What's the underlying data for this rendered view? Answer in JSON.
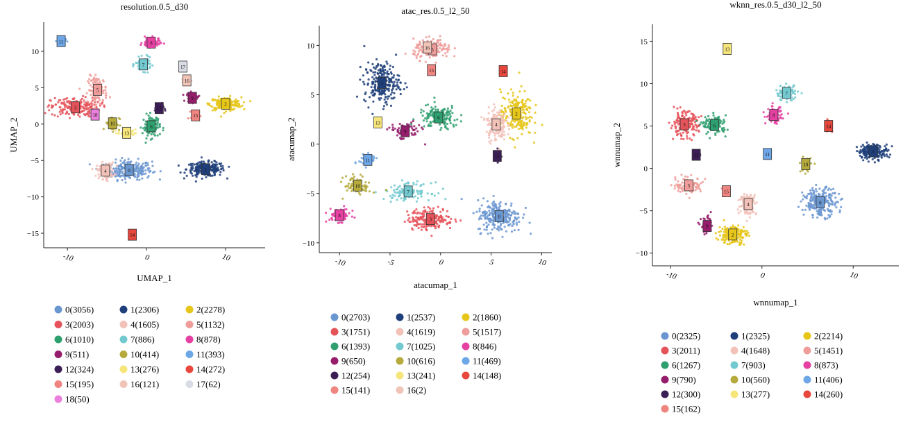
{
  "palette": {
    "0": "#6b97d1",
    "1": "#1f3f7a",
    "2": "#e6c619",
    "3": "#e5535a",
    "4": "#f2c1b8",
    "5": "#ef9d9a",
    "6": "#2e9f6e",
    "7": "#72c9d0",
    "8": "#e640a3",
    "9": "#951d6c",
    "10": "#b5aa3b",
    "11": "#6ea7e8",
    "12": "#3c1e56",
    "13": "#f5e57a",
    "14": "#e8473d",
    "15": "#ef8581",
    "16": "#f1c4b8",
    "17": "#d9dbe5",
    "18": "#ea80dc"
  },
  "chart_data": [
    {
      "type": "scatter",
      "title": "resolution.0.5_d30",
      "xlabel": "UMAP_1",
      "ylabel": "UMAP_2",
      "xlim": [
        -13,
        15
      ],
      "ylim": [
        -17,
        14
      ],
      "x_ticks": [
        -10,
        0,
        10
      ],
      "x_tick_labels": [
        "-10",
        "0",
        "10"
      ],
      "y_ticks": [
        10,
        5,
        0,
        -5,
        -10,
        -15
      ],
      "y_tick_labels": [
        "10",
        "5",
        "0",
        "−5",
        "−10",
        "−15"
      ],
      "clusters": [
        {
          "id": "0",
          "x": -2.2,
          "y": -6.3,
          "sx": 2.6,
          "sy": 1.2,
          "n": 260,
          "label": "0(3056)"
        },
        {
          "id": "1",
          "x": 7.5,
          "y": -6.2,
          "sx": 2.2,
          "sy": 0.9,
          "n": 220,
          "label": "1(2306)"
        },
        {
          "id": "2",
          "x": 10.0,
          "y": 2.8,
          "sx": 1.8,
          "sy": 0.8,
          "n": 190,
          "label": "2(2278)"
        },
        {
          "id": "3",
          "x": -9.0,
          "y": 2.3,
          "sx": 2.8,
          "sy": 1.2,
          "n": 210,
          "label": "3(2003)"
        },
        {
          "id": "4",
          "x": -5.2,
          "y": -6.4,
          "sx": 1.0,
          "sy": 1.0,
          "n": 120,
          "label": "4(1605)"
        },
        {
          "id": "5",
          "x": -6.2,
          "y": 4.7,
          "sx": 1.1,
          "sy": 1.7,
          "n": 110,
          "label": "5(1132)"
        },
        {
          "id": "6",
          "x": 0.6,
          "y": -0.3,
          "sx": 1.0,
          "sy": 1.4,
          "n": 100,
          "label": "6(1010)"
        },
        {
          "id": "7",
          "x": -0.4,
          "y": 8.2,
          "sx": 0.9,
          "sy": 0.8,
          "n": 85,
          "label": "7(886)"
        },
        {
          "id": "8",
          "x": 0.6,
          "y": 11.2,
          "sx": 1.0,
          "sy": 0.6,
          "n": 85,
          "label": "8(878)"
        },
        {
          "id": "9",
          "x": 5.8,
          "y": 3.6,
          "sx": 0.7,
          "sy": 0.6,
          "n": 55,
          "label": "9(511)"
        },
        {
          "id": "10",
          "x": -4.3,
          "y": 0.1,
          "sx": 0.8,
          "sy": 0.9,
          "n": 45,
          "label": "10(414)"
        },
        {
          "id": "11",
          "x": -10.8,
          "y": 11.4,
          "sx": 0.5,
          "sy": 0.4,
          "n": 40,
          "label": "11(393)"
        },
        {
          "id": "12",
          "x": 1.6,
          "y": 2.2,
          "sx": 0.5,
          "sy": 0.6,
          "n": 35,
          "label": "12(324)"
        },
        {
          "id": "13",
          "x": -2.5,
          "y": -1.2,
          "sx": 1.0,
          "sy": 0.4,
          "n": 35,
          "label": "13(276)"
        },
        {
          "id": "14",
          "x": -1.8,
          "y": -15.2,
          "sx": 0.3,
          "sy": 0.3,
          "n": 30,
          "label": "14(272)"
        },
        {
          "id": "15",
          "x": 6.2,
          "y": 1.2,
          "sx": 0.5,
          "sy": 0.5,
          "n": 25,
          "label": "15(195)"
        },
        {
          "id": "16",
          "x": 5.1,
          "y": 6.0,
          "sx": 0.6,
          "sy": 0.4,
          "n": 20,
          "label": "16(121)"
        },
        {
          "id": "17",
          "x": 4.6,
          "y": 7.9,
          "sx": 0.4,
          "sy": 0.3,
          "n": 12,
          "label": "17(62)"
        },
        {
          "id": "18",
          "x": -6.5,
          "y": 1.3,
          "sx": 0.4,
          "sy": 0.3,
          "n": 12,
          "label": "18(50)"
        }
      ]
    },
    {
      "type": "scatter",
      "title": "atac_res.0.5_l2_50",
      "xlabel": "atacumap_1",
      "ylabel": "atacumap_2",
      "xlim": [
        -12,
        11
      ],
      "ylim": [
        -11,
        12
      ],
      "x_ticks": [
        -10,
        -5,
        0,
        5,
        10
      ],
      "x_tick_labels": [
        "-10",
        "-5",
        "0",
        "5",
        "10"
      ],
      "y_ticks": [
        10,
        5,
        0,
        -5,
        -10
      ],
      "y_tick_labels": [
        "10",
        "5",
        "0",
        "−5",
        "−10"
      ],
      "clusters": [
        {
          "id": "0",
          "x": 5.8,
          "y": -7.3,
          "sx": 2.0,
          "sy": 1.5,
          "n": 240,
          "label": "0(2703)"
        },
        {
          "id": "1",
          "x": -5.8,
          "y": 6.2,
          "sx": 1.6,
          "sy": 1.9,
          "n": 230,
          "label": "1(2537)"
        },
        {
          "id": "2",
          "x": 7.5,
          "y": 3.1,
          "sx": 1.4,
          "sy": 2.1,
          "n": 200,
          "label": "2(1860)"
        },
        {
          "id": "3",
          "x": -1.0,
          "y": -7.6,
          "sx": 2.1,
          "sy": 1.0,
          "n": 180,
          "label": "3(1751)"
        },
        {
          "id": "4",
          "x": 5.5,
          "y": 2.0,
          "sx": 0.9,
          "sy": 1.5,
          "n": 160,
          "label": "4(1619)"
        },
        {
          "id": "5",
          "x": -0.8,
          "y": 9.6,
          "sx": 1.7,
          "sy": 0.9,
          "n": 150,
          "label": "5(1517)"
        },
        {
          "id": "6",
          "x": -0.2,
          "y": 2.7,
          "sx": 1.8,
          "sy": 1.1,
          "n": 140,
          "label": "6(1393)"
        },
        {
          "id": "7",
          "x": -3.2,
          "y": -4.8,
          "sx": 2.1,
          "sy": 0.8,
          "n": 110,
          "label": "7(1025)"
        },
        {
          "id": "8",
          "x": -10.0,
          "y": -7.2,
          "sx": 1.0,
          "sy": 0.6,
          "n": 90,
          "label": "8(846)"
        },
        {
          "id": "9",
          "x": -3.5,
          "y": 1.3,
          "sx": 1.4,
          "sy": 0.8,
          "n": 75,
          "label": "9(650)"
        },
        {
          "id": "10",
          "x": -8.2,
          "y": -4.2,
          "sx": 1.2,
          "sy": 0.9,
          "n": 70,
          "label": "10(616)"
        },
        {
          "id": "11",
          "x": -7.2,
          "y": -1.6,
          "sx": 0.8,
          "sy": 0.5,
          "n": 55,
          "label": "11(469)"
        },
        {
          "id": "12",
          "x": 5.6,
          "y": -1.2,
          "sx": 0.3,
          "sy": 0.5,
          "n": 30,
          "label": "12(254)"
        },
        {
          "id": "13",
          "x": -6.2,
          "y": 2.2,
          "sx": 0.3,
          "sy": 0.3,
          "n": 20,
          "label": "13(241)"
        },
        {
          "id": "14",
          "x": 6.2,
          "y": 7.4,
          "sx": 0.2,
          "sy": 0.3,
          "n": 12,
          "label": "14(148)"
        },
        {
          "id": "15",
          "x": -0.9,
          "y": 7.5,
          "sx": 0.3,
          "sy": 0.3,
          "n": 18,
          "label": "15(141)"
        },
        {
          "id": "16",
          "x": -1.3,
          "y": 9.8,
          "sx": 0.2,
          "sy": 0.2,
          "n": 4,
          "label": "16(2)"
        }
      ]
    },
    {
      "type": "scatter",
      "title": "wknn_res.0.5_d30_l2_50",
      "xlabel": "wnnumap_1",
      "ylabel": "wnnumap_2",
      "xlim": [
        -12,
        15
      ],
      "ylim": [
        -11.5,
        17
      ],
      "x_ticks": [
        -10,
        0,
        10
      ],
      "x_tick_labels": [
        "-10",
        "0",
        "10"
      ],
      "y_ticks": [
        15,
        10,
        5,
        0,
        -5,
        -10
      ],
      "y_tick_labels": [
        "15",
        "10",
        "5",
        "0",
        "−5",
        "−10"
      ],
      "clusters": [
        {
          "id": "0",
          "x": 6.4,
          "y": -4.0,
          "sx": 1.7,
          "sy": 1.5,
          "n": 220,
          "label": "0(2325)"
        },
        {
          "id": "1",
          "x": 12.2,
          "y": 2.0,
          "sx": 1.5,
          "sy": 0.8,
          "n": 190,
          "label": "1(2325)"
        },
        {
          "id": "2",
          "x": -3.2,
          "y": -7.8,
          "sx": 1.4,
          "sy": 1.0,
          "n": 180,
          "label": "2(2214)"
        },
        {
          "id": "3",
          "x": -8.5,
          "y": 5.2,
          "sx": 1.4,
          "sy": 1.3,
          "n": 180,
          "label": "3(2011)"
        },
        {
          "id": "4",
          "x": -1.5,
          "y": -4.2,
          "sx": 0.8,
          "sy": 1.1,
          "n": 140,
          "label": "4(1648)"
        },
        {
          "id": "5",
          "x": -8.0,
          "y": -2.0,
          "sx": 1.3,
          "sy": 0.8,
          "n": 130,
          "label": "5(1451)"
        },
        {
          "id": "6",
          "x": -5.2,
          "y": 5.1,
          "sx": 1.2,
          "sy": 1.0,
          "n": 110,
          "label": "6(1267)"
        },
        {
          "id": "7",
          "x": 2.7,
          "y": 8.9,
          "sx": 1.1,
          "sy": 0.8,
          "n": 80,
          "label": "7(903)"
        },
        {
          "id": "8",
          "x": 1.3,
          "y": 6.3,
          "sx": 0.8,
          "sy": 0.9,
          "n": 80,
          "label": "8(873)"
        },
        {
          "id": "9",
          "x": -6.0,
          "y": -6.8,
          "sx": 0.6,
          "sy": 0.9,
          "n": 70,
          "label": "9(790)"
        },
        {
          "id": "10",
          "x": 4.8,
          "y": 0.5,
          "sx": 0.5,
          "sy": 0.9,
          "n": 45,
          "label": "10(560)"
        },
        {
          "id": "11",
          "x": 0.6,
          "y": 1.7,
          "sx": 0.2,
          "sy": 0.2,
          "n": 6,
          "label": "11(406)"
        },
        {
          "id": "12",
          "x": -7.2,
          "y": 1.6,
          "sx": 0.4,
          "sy": 0.4,
          "n": 30,
          "label": "12(300)"
        },
        {
          "id": "13",
          "x": -3.8,
          "y": 14.1,
          "sx": 0.2,
          "sy": 0.2,
          "n": 4,
          "label": "13(277)"
        },
        {
          "id": "14",
          "x": 7.3,
          "y": 5.0,
          "sx": 0.3,
          "sy": 0.6,
          "n": 14,
          "label": "14(260)"
        },
        {
          "id": "15",
          "x": -3.9,
          "y": -2.7,
          "sx": 0.4,
          "sy": 0.4,
          "n": 16,
          "label": "15(162)"
        }
      ]
    }
  ]
}
